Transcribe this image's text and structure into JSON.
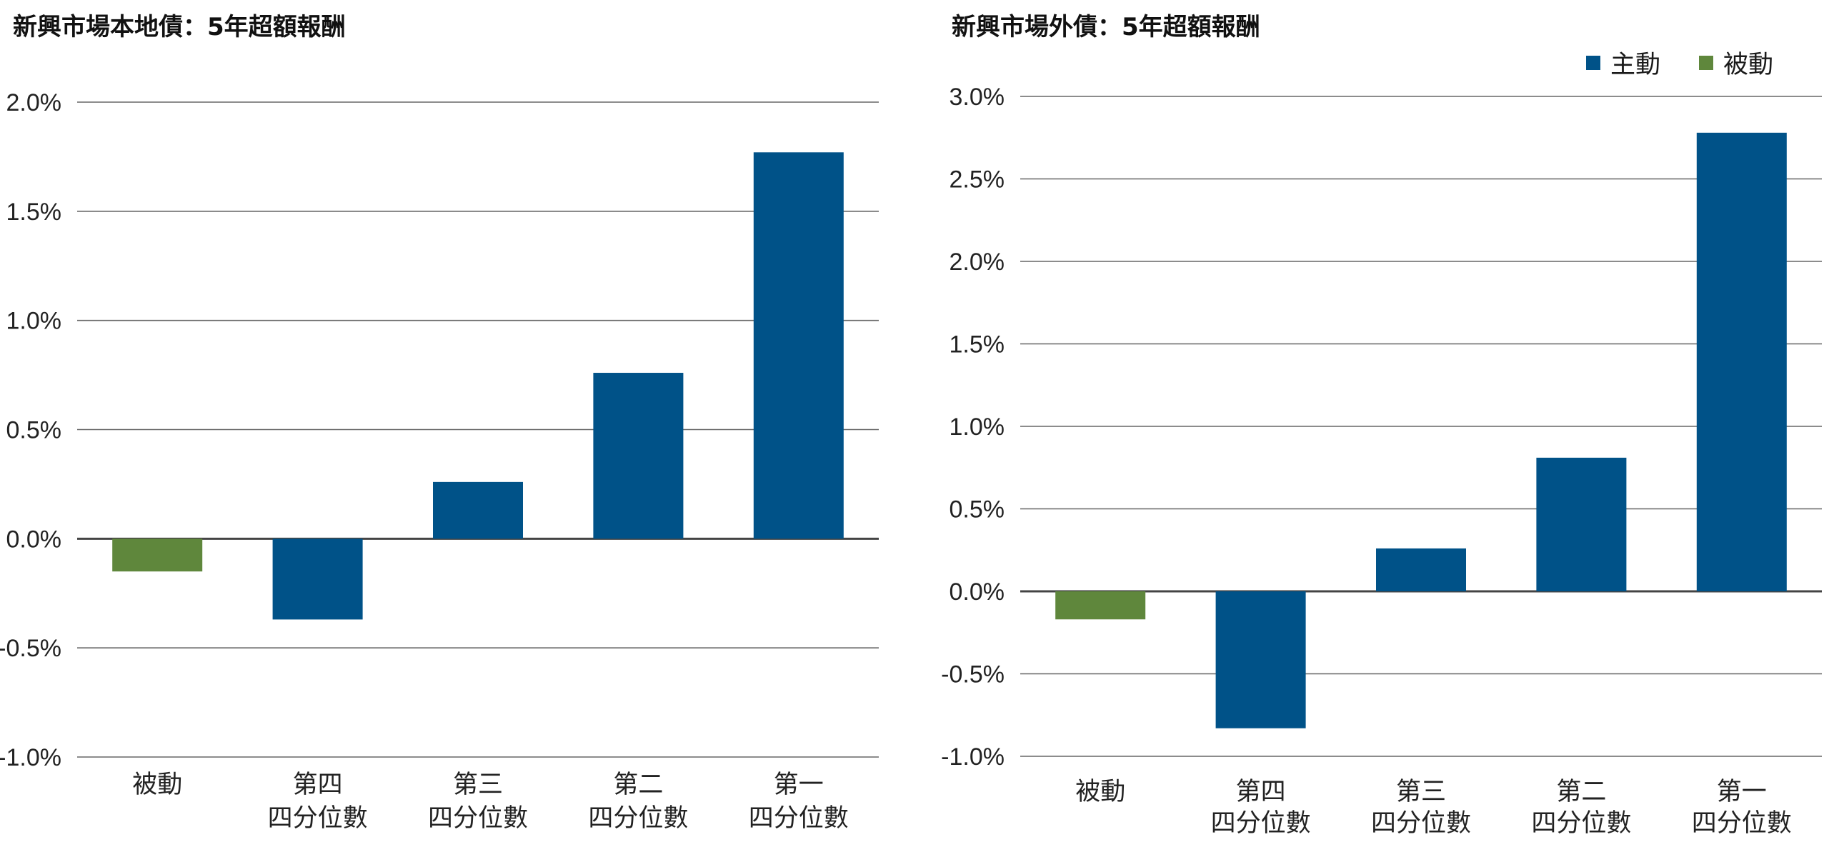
{
  "chart_data": [
    {
      "type": "bar",
      "title": "新興市場本地債：5年超額報酬",
      "xlabel": "",
      "ylabel": "",
      "categories": [
        [
          "被動"
        ],
        [
          "第四",
          "四分位數"
        ],
        [
          "第三",
          "四分位數"
        ],
        [
          "第二",
          "四分位數"
        ],
        [
          "第一",
          "四分位數"
        ]
      ],
      "values": [
        -0.15,
        -0.37,
        0.26,
        0.76,
        1.77
      ],
      "bar_series": [
        "被動",
        "主動",
        "主動",
        "主動",
        "主動"
      ],
      "ylim": [
        -1.0,
        2.0
      ],
      "yticks": [
        2.0,
        1.5,
        1.0,
        0.5,
        0.0,
        -0.5,
        -1.0
      ],
      "ytick_labels": [
        "2.0%",
        "1.5%",
        "1.0%",
        "0.5%",
        "0.0%",
        "-0.5%",
        "-1.0%"
      ],
      "grid": true,
      "legend": null
    },
    {
      "type": "bar",
      "title": "新興市場外債：5年超額報酬",
      "xlabel": "",
      "ylabel": "",
      "categories": [
        [
          "被動"
        ],
        [
          "第四",
          "四分位數"
        ],
        [
          "第三",
          "四分位數"
        ],
        [
          "第二",
          "四分位數"
        ],
        [
          "第一",
          "四分位數"
        ]
      ],
      "values": [
        -0.17,
        -0.83,
        0.26,
        0.81,
        2.78
      ],
      "bar_series": [
        "被動",
        "主動",
        "主動",
        "主動",
        "主動"
      ],
      "ylim": [
        -1.0,
        3.0
      ],
      "yticks": [
        3.0,
        2.5,
        2.0,
        1.5,
        1.0,
        0.5,
        0.0,
        -0.5,
        -1.0
      ],
      "ytick_labels": [
        "3.0%",
        "2.5%",
        "2.0%",
        "1.5%",
        "1.0%",
        "0.5%",
        "0.0%",
        "-0.5%",
        "-1.0%"
      ],
      "grid": true,
      "legend": {
        "position": "top-right",
        "entries": [
          {
            "label": "主動",
            "color": "#005288"
          },
          {
            "label": "被動",
            "color": "#5f873c"
          }
        ]
      }
    }
  ],
  "colors": {
    "主動": "#005288",
    "被動": "#5f873c",
    "grid": "#555555"
  }
}
